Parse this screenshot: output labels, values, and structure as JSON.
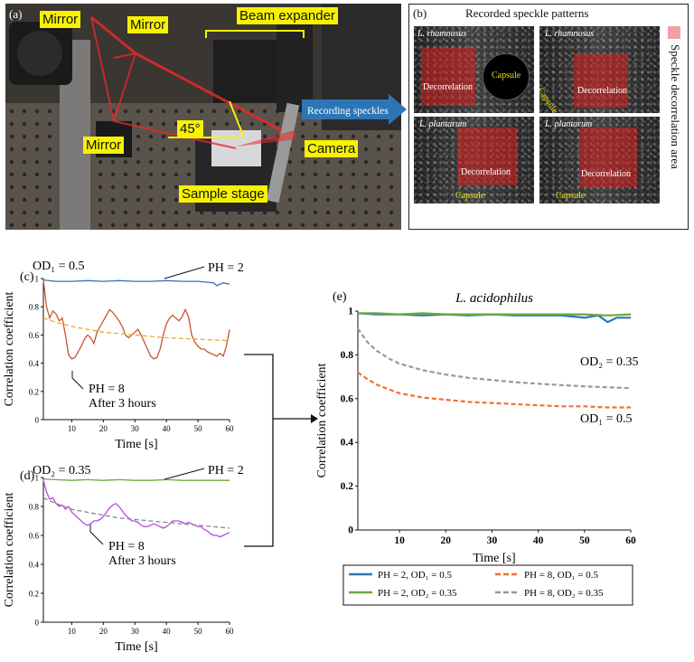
{
  "panel_a": {
    "letter": "(a)",
    "labels": {
      "mirror_top_left": "Mirror",
      "mirror_top_mid": "Mirror",
      "mirror_bottom": "Mirror",
      "beam_expander": "Beam expander",
      "angle": "45°",
      "camera": "Camera",
      "sample_stage": "Sample stage"
    },
    "arrow_label": "Recording speckles"
  },
  "panel_b": {
    "letter": "(b)",
    "title": "Recorded speckle patterns",
    "legend_label": "Speckle decorrelation area",
    "legend_color": "#f4a0a8",
    "images": [
      {
        "species": "L. rhamnosus",
        "decor_label": "Decorrelation",
        "capsule_label": "Capsule"
      },
      {
        "species": "L. rhamnosus",
        "decor_label": "Decorrelation",
        "capsule_label": "Capsule"
      },
      {
        "species": "L. plantarum",
        "decor_label": "Decorrelation",
        "capsule_label": "Capsule"
      },
      {
        "species": "L. plantarum",
        "decor_label": "Decorrelation",
        "capsule_label": "Capsule"
      }
    ]
  },
  "chart_data": [
    {
      "panel": "(c)",
      "type": "line",
      "annotation_top": "OD₁ = 0.5",
      "label_top_series": "PH = 2",
      "label_bottom_series_line1": "PH = 8",
      "label_bottom_series_line2": "After 3 hours",
      "xlabel": "Time [s]",
      "ylabel": "Correlation coefficient",
      "xlim": [
        1,
        60
      ],
      "ylim": [
        0,
        1
      ],
      "xticks": [
        10,
        20,
        30,
        40,
        50,
        60
      ],
      "yticks": [
        0,
        0.2,
        0.4,
        0.6,
        0.8,
        1
      ],
      "series": [
        {
          "color": "#2e75b6",
          "style": "solid",
          "x": [
            1,
            5,
            10,
            15,
            20,
            25,
            30,
            35,
            40,
            45,
            50,
            55,
            56,
            58,
            60
          ],
          "y": [
            0.99,
            0.98,
            0.98,
            0.985,
            0.98,
            0.985,
            0.98,
            0.98,
            0.985,
            0.98,
            0.98,
            0.97,
            0.95,
            0.97,
            0.96
          ]
        },
        {
          "color": "#c8552a",
          "style": "solid",
          "x": [
            1,
            2,
            3,
            4,
            5,
            6,
            7,
            8,
            9,
            10,
            11,
            12,
            13,
            14,
            15,
            16,
            17,
            18,
            19,
            20,
            21,
            22,
            23,
            24,
            25,
            26,
            27,
            28,
            29,
            30,
            31,
            32,
            33,
            34,
            35,
            36,
            37,
            38,
            39,
            40,
            41,
            42,
            43,
            44,
            45,
            46,
            47,
            48,
            49,
            50,
            51,
            52,
            53,
            54,
            55,
            56,
            57,
            58,
            59,
            60
          ],
          "y": [
            0.99,
            0.8,
            0.72,
            0.77,
            0.75,
            0.7,
            0.72,
            0.6,
            0.46,
            0.43,
            0.44,
            0.48,
            0.52,
            0.57,
            0.6,
            0.58,
            0.54,
            0.62,
            0.66,
            0.7,
            0.74,
            0.78,
            0.76,
            0.73,
            0.7,
            0.66,
            0.6,
            0.58,
            0.6,
            0.62,
            0.64,
            0.6,
            0.55,
            0.5,
            0.45,
            0.43,
            0.44,
            0.5,
            0.6,
            0.68,
            0.72,
            0.74,
            0.72,
            0.7,
            0.73,
            0.78,
            0.73,
            0.6,
            0.55,
            0.52,
            0.5,
            0.5,
            0.48,
            0.47,
            0.46,
            0.45,
            0.47,
            0.45,
            0.52,
            0.64
          ]
        },
        {
          "color": "#f0a830",
          "style": "dashed",
          "x": [
            1,
            5,
            10,
            15,
            20,
            25,
            30,
            35,
            40,
            45,
            50,
            55,
            60
          ],
          "y": [
            0.72,
            0.69,
            0.66,
            0.64,
            0.62,
            0.61,
            0.6,
            0.59,
            0.58,
            0.575,
            0.57,
            0.565,
            0.56
          ]
        }
      ]
    },
    {
      "panel": "(d)",
      "type": "line",
      "annotation_top": "OD₂ = 0.35",
      "label_top_series": "PH = 2",
      "label_bottom_series_line1": "PH = 8",
      "label_bottom_series_line2": "After 3 hours",
      "xlabel": "Time [s]",
      "ylabel": "Correlation coefficient",
      "xlim": [
        1,
        60
      ],
      "ylim": [
        0,
        1
      ],
      "xticks": [
        10,
        20,
        30,
        40,
        50,
        60
      ],
      "yticks": [
        0,
        0.2,
        0.4,
        0.6,
        0.8,
        1
      ],
      "series": [
        {
          "color": "#6aaa3a",
          "style": "solid",
          "x": [
            1,
            5,
            10,
            15,
            20,
            25,
            30,
            35,
            40,
            45,
            50,
            55,
            60
          ],
          "y": [
            0.99,
            0.985,
            0.98,
            0.985,
            0.98,
            0.985,
            0.98,
            0.98,
            0.985,
            0.98,
            0.98,
            0.98,
            0.98
          ]
        },
        {
          "color": "#b44ee0",
          "style": "solid",
          "x": [
            1,
            2,
            3,
            4,
            5,
            6,
            7,
            8,
            9,
            10,
            11,
            12,
            13,
            14,
            15,
            16,
            17,
            18,
            19,
            20,
            21,
            22,
            23,
            24,
            25,
            26,
            27,
            28,
            29,
            30,
            31,
            32,
            33,
            34,
            35,
            36,
            37,
            38,
            39,
            40,
            41,
            42,
            43,
            44,
            45,
            46,
            47,
            48,
            49,
            50,
            51,
            52,
            53,
            54,
            55,
            56,
            57,
            58,
            59,
            60
          ],
          "y": [
            0.98,
            0.9,
            0.85,
            0.86,
            0.82,
            0.8,
            0.81,
            0.78,
            0.8,
            0.76,
            0.74,
            0.72,
            0.7,
            0.68,
            0.67,
            0.68,
            0.7,
            0.7,
            0.71,
            0.73,
            0.76,
            0.79,
            0.81,
            0.82,
            0.8,
            0.77,
            0.74,
            0.72,
            0.7,
            0.7,
            0.69,
            0.67,
            0.66,
            0.66,
            0.67,
            0.68,
            0.67,
            0.66,
            0.65,
            0.66,
            0.68,
            0.7,
            0.7,
            0.7,
            0.69,
            0.68,
            0.69,
            0.68,
            0.67,
            0.66,
            0.66,
            0.64,
            0.63,
            0.61,
            0.6,
            0.6,
            0.59,
            0.6,
            0.61,
            0.62
          ]
        },
        {
          "color": "#888888",
          "style": "dashed",
          "x": [
            1,
            5,
            10,
            15,
            20,
            25,
            30,
            35,
            40,
            45,
            50,
            55,
            60
          ],
          "y": [
            0.86,
            0.82,
            0.78,
            0.76,
            0.74,
            0.72,
            0.71,
            0.7,
            0.69,
            0.68,
            0.67,
            0.66,
            0.65
          ]
        }
      ]
    },
    {
      "panel": "(e)",
      "type": "line",
      "title": "L. acidophilus",
      "annotation_od2": "OD₂ = 0.35",
      "annotation_od1": "OD₁ = 0.5",
      "xlabel": "Time [s]",
      "ylabel": "Correlation coefficient",
      "xlim": [
        1,
        60
      ],
      "ylim": [
        0,
        1
      ],
      "xticks": [
        10,
        20,
        30,
        40,
        50,
        60
      ],
      "yticks": [
        0,
        0.2,
        0.4,
        0.6,
        0.8,
        1
      ],
      "legend_placement": "bottom",
      "series": [
        {
          "name": "PH = 2, OD₁ = 0.5",
          "color": "#2e75b6",
          "style": "solid",
          "x": [
            1,
            5,
            10,
            15,
            20,
            25,
            30,
            35,
            40,
            45,
            50,
            53,
            55,
            57,
            60
          ],
          "y": [
            0.99,
            0.985,
            0.985,
            0.98,
            0.985,
            0.98,
            0.985,
            0.98,
            0.98,
            0.98,
            0.97,
            0.98,
            0.95,
            0.97,
            0.97
          ]
        },
        {
          "name": "PH = 2, OD₂ = 0.35",
          "color": "#6aaa3a",
          "style": "solid",
          "x": [
            1,
            5,
            10,
            15,
            20,
            25,
            30,
            35,
            40,
            45,
            50,
            55,
            60
          ],
          "y": [
            0.99,
            0.99,
            0.985,
            0.99,
            0.985,
            0.985,
            0.985,
            0.985,
            0.985,
            0.985,
            0.985,
            0.98,
            0.985
          ]
        },
        {
          "name": "PH = 8, OD₁ = 0.5",
          "color": "#f07030",
          "style": "dashed",
          "x": [
            1,
            3,
            5,
            8,
            10,
            15,
            20,
            25,
            30,
            35,
            40,
            45,
            50,
            55,
            60
          ],
          "y": [
            0.72,
            0.69,
            0.665,
            0.64,
            0.625,
            0.605,
            0.595,
            0.585,
            0.58,
            0.575,
            0.57,
            0.565,
            0.565,
            0.56,
            0.56
          ]
        },
        {
          "name": "PH = 8, OD₂ = 0.35",
          "color": "#999999",
          "style": "dashed",
          "x": [
            1,
            3,
            5,
            8,
            10,
            15,
            20,
            25,
            30,
            35,
            40,
            45,
            50,
            55,
            60
          ],
          "y": [
            0.92,
            0.86,
            0.82,
            0.78,
            0.76,
            0.73,
            0.71,
            0.695,
            0.685,
            0.675,
            0.668,
            0.662,
            0.656,
            0.652,
            0.648
          ]
        }
      ]
    }
  ]
}
